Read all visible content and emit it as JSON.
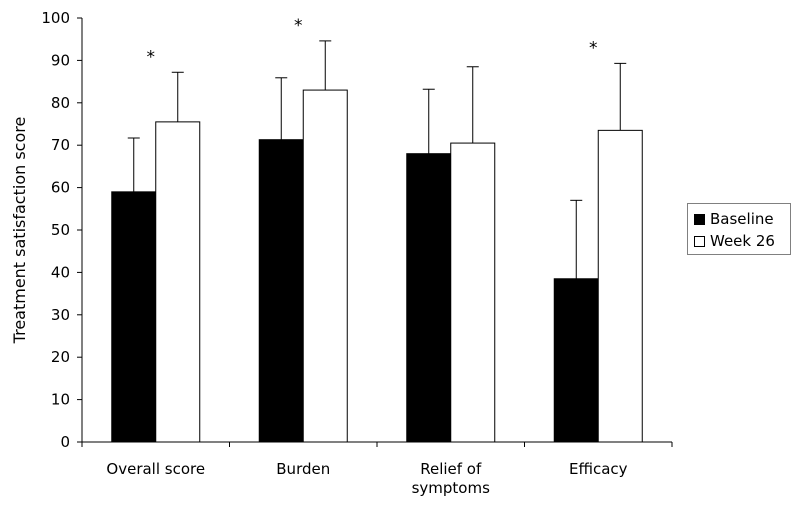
{
  "chart_data": {
    "type": "bar",
    "ylabel": "Treatment satisfaction score",
    "xlabel": "",
    "ylim": [
      0,
      100
    ],
    "yticks": [
      0,
      10,
      20,
      30,
      40,
      50,
      60,
      70,
      80,
      90,
      100
    ],
    "categories": [
      "Overall score",
      "Burden",
      "Relief of symptoms",
      "Efficacy"
    ],
    "category_lines": [
      [
        "Overall score"
      ],
      [
        "Burden"
      ],
      [
        "Relief of",
        "symptoms"
      ],
      [
        "Efficacy"
      ]
    ],
    "series": [
      {
        "name": "Baseline",
        "values": [
          59,
          71.3,
          68,
          38.5
        ],
        "error": [
          12.7,
          14.6,
          15.2,
          18.5
        ],
        "color": "#000000"
      },
      {
        "name": "Week 26",
        "values": [
          75.5,
          83,
          70.5,
          73.5
        ],
        "error": [
          11.7,
          11.6,
          18,
          15.8
        ],
        "color": "#ffffff"
      }
    ],
    "annotations": [
      {
        "category": "Overall score",
        "text": "*"
      },
      {
        "category": "Burden",
        "text": "*"
      },
      {
        "category": "Efficacy",
        "text": "*"
      }
    ],
    "legend": {
      "position": "right"
    },
    "grid": false
  }
}
